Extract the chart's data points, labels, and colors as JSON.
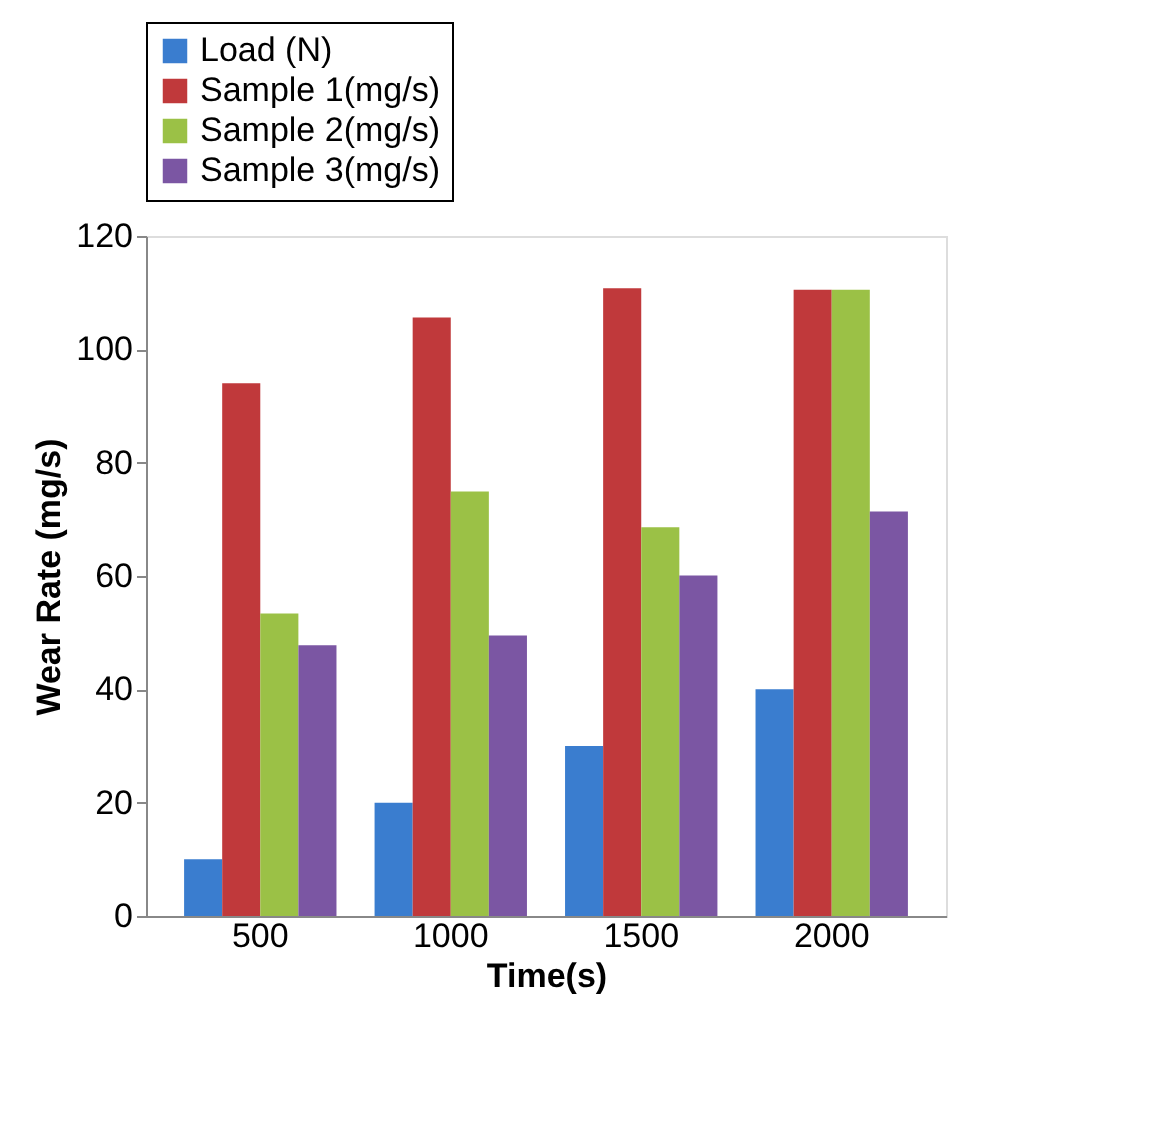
{
  "chart_data": {
    "type": "bar",
    "xlabel": "Time(s)",
    "ylabel": "Wear Rate (mg/s)",
    "categories": [
      "500",
      "1000",
      "1500",
      "2000"
    ],
    "series": [
      {
        "name": "Load (N)",
        "color": "#3a7dcf",
        "values": [
          10,
          20,
          30,
          40
        ]
      },
      {
        "name": "Sample 1(mg/s)",
        "color": "#c0393b",
        "values": [
          94,
          105.6,
          110.8,
          110.5
        ]
      },
      {
        "name": "Sample 2(mg/s)",
        "color": "#9bc146",
        "values": [
          53.4,
          74.9,
          68.6,
          110.5
        ]
      },
      {
        "name": "Sample 3(mg/s)",
        "color": "#7b56a3",
        "values": [
          47.8,
          49.5,
          60.1,
          71.4
        ]
      }
    ],
    "ylim": [
      0,
      120
    ],
    "yticks": [
      0,
      20,
      40,
      60,
      80,
      100,
      120
    ],
    "grid": false,
    "legend": "top"
  }
}
